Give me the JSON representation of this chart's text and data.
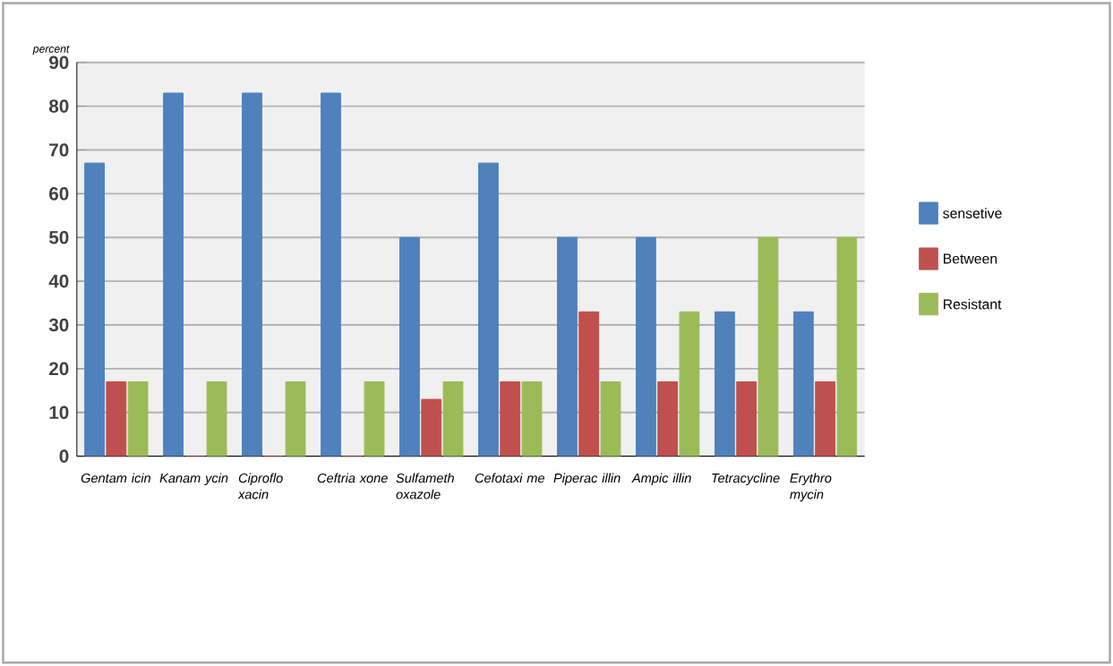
{
  "chart_data": {
    "type": "bar",
    "ylabel": "percent",
    "categories": [
      "Gentam icin",
      "Kanam ycin",
      "Ciproflo xacin",
      "Ceftria xone",
      "Sulfameth oxazole",
      "Cefotaxi me",
      "Piperac illin",
      "Ampic illin",
      "Tetracycline",
      "Erythro mycin"
    ],
    "series": [
      {
        "name": "sensetive",
        "color": "#4f81bd",
        "values": [
          67,
          83,
          83,
          83,
          50,
          67,
          50,
          50,
          33,
          33
        ]
      },
      {
        "name": "Between",
        "color": "#c0504d",
        "values": [
          17,
          0,
          0,
          0,
          13,
          17,
          33,
          17,
          17,
          17
        ]
      },
      {
        "name": "Resistant",
        "color": "#9bbb59",
        "values": [
          17,
          17,
          17,
          17,
          17,
          17,
          17,
          33,
          50,
          50
        ]
      }
    ],
    "ylim": [
      0,
      90
    ],
    "yticks": [
      0,
      10,
      20,
      30,
      40,
      50,
      60,
      70,
      80,
      90
    ],
    "grid": "y",
    "legend": "right"
  }
}
